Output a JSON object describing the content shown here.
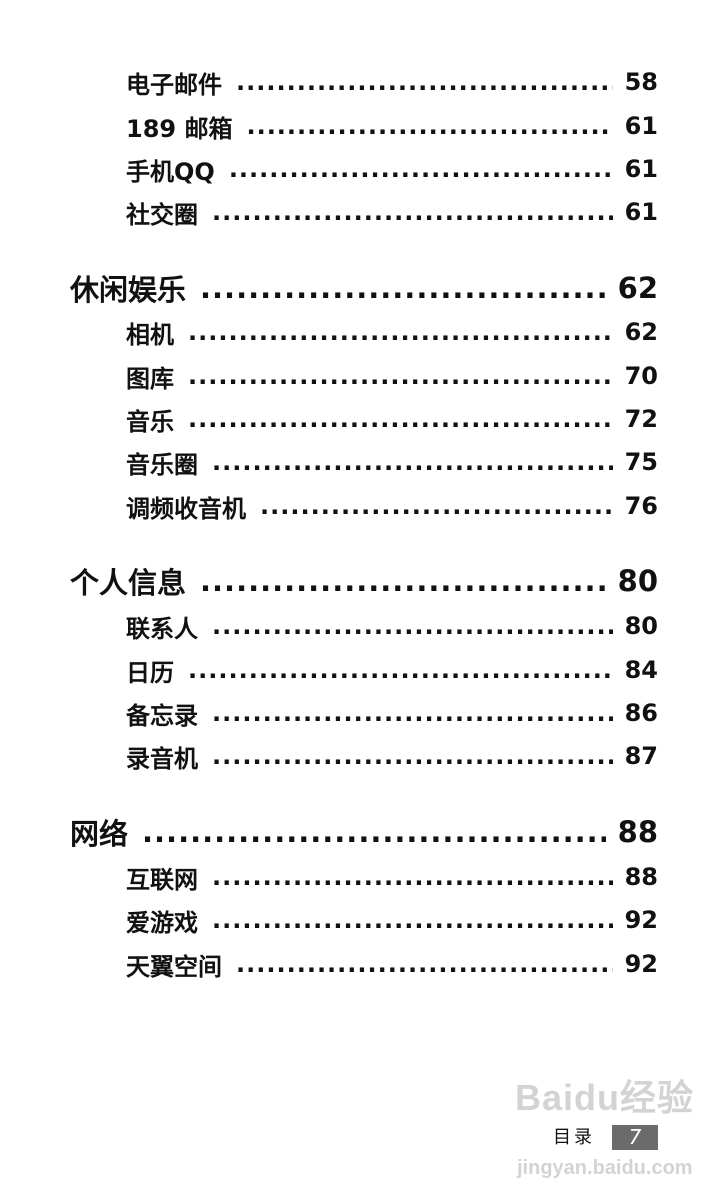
{
  "toc": [
    {
      "level": "sub",
      "title": "电子邮件",
      "page": "58"
    },
    {
      "level": "sub",
      "title": "189 邮箱",
      "page": "61"
    },
    {
      "level": "sub",
      "title": "手机QQ",
      "page": "61"
    },
    {
      "level": "sub",
      "title": "社交圈",
      "page": "61"
    },
    {
      "level": "sec",
      "title": "休闲娱乐",
      "page": "62"
    },
    {
      "level": "sub",
      "title": "相机",
      "page": "62"
    },
    {
      "level": "sub",
      "title": "图库",
      "page": "70"
    },
    {
      "level": "sub",
      "title": "音乐",
      "page": "72"
    },
    {
      "level": "sub",
      "title": "音乐圈",
      "page": "75"
    },
    {
      "level": "sub",
      "title": "调频收音机",
      "page": "76"
    },
    {
      "level": "sec",
      "title": "个人信息",
      "page": "80"
    },
    {
      "level": "sub",
      "title": "联系人",
      "page": "80"
    },
    {
      "level": "sub",
      "title": "日历",
      "page": "84"
    },
    {
      "level": "sub",
      "title": "备忘录",
      "page": "86"
    },
    {
      "level": "sub",
      "title": "录音机",
      "page": "87"
    },
    {
      "level": "sec",
      "title": "网络",
      "page": "88"
    },
    {
      "level": "sub",
      "title": "互联网",
      "page": "88"
    },
    {
      "level": "sub",
      "title": "爱游戏",
      "page": "92"
    },
    {
      "level": "sub",
      "title": "天翼空间",
      "page": "92"
    }
  ],
  "footer": {
    "label": "目录",
    "page_number": "7"
  },
  "watermark": {
    "brand": "Baidu经验",
    "url": "jingyan.baidu.com"
  }
}
